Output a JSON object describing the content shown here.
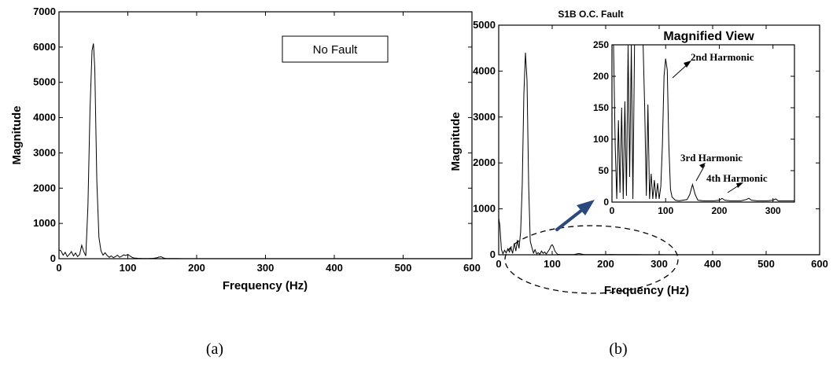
{
  "chart_data": [
    {
      "type": "line",
      "panel_caption": "(a)",
      "title": "",
      "legend_text": "No Fault",
      "xlabel": "Frequency (Hz)",
      "ylabel": "Magnitude",
      "xlim": [
        0,
        600
      ],
      "ylim": [
        0,
        7000
      ],
      "xticks": [
        0,
        100,
        200,
        300,
        400,
        500,
        600
      ],
      "yticks": [
        0,
        1000,
        2000,
        3000,
        4000,
        5000,
        6000,
        7000
      ],
      "x": [
        0,
        3,
        6,
        9,
        12,
        15,
        18,
        21,
        24,
        27,
        30,
        33,
        36,
        39,
        42,
        45,
        48,
        50,
        52,
        55,
        58,
        61,
        64,
        67,
        70,
        73,
        76,
        79,
        82,
        85,
        88,
        91,
        94,
        97,
        100,
        103,
        106,
        109,
        112,
        115,
        118,
        121,
        124,
        127,
        130,
        133,
        136,
        139,
        142,
        145,
        148,
        150,
        152,
        155,
        160,
        170,
        180,
        200,
        250,
        300,
        350,
        400,
        450,
        500,
        550,
        600
      ],
      "y": [
        250,
        220,
        100,
        180,
        60,
        120,
        200,
        80,
        160,
        60,
        120,
        380,
        200,
        80,
        1500,
        4200,
        5900,
        6100,
        5400,
        2200,
        600,
        220,
        100,
        170,
        90,
        40,
        80,
        30,
        60,
        100,
        40,
        70,
        110,
        90,
        120,
        80,
        40,
        20,
        15,
        10,
        8,
        6,
        5,
        5,
        6,
        8,
        10,
        15,
        25,
        45,
        55,
        40,
        20,
        8,
        5,
        4,
        3,
        3,
        3,
        3,
        2,
        2,
        2,
        2,
        2,
        2
      ]
    },
    {
      "type": "line",
      "panel_caption": "(b)",
      "title": "S1B O.C. Fault",
      "xlabel": "Frequency (Hz)",
      "ylabel": "Magnitude",
      "xlim": [
        0,
        600
      ],
      "ylim": [
        0,
        5000
      ],
      "xticks": [
        0,
        100,
        200,
        300,
        400,
        500,
        600
      ],
      "yticks": [
        0,
        1000,
        2000,
        3000,
        4000,
        5000
      ],
      "x": [
        0,
        2,
        5,
        8,
        11,
        14,
        17,
        20,
        23,
        26,
        29,
        32,
        35,
        38,
        41,
        44,
        47,
        50,
        53,
        56,
        59,
        62,
        65,
        68,
        71,
        74,
        77,
        80,
        83,
        86,
        89,
        92,
        95,
        98,
        100,
        102,
        105,
        110,
        115,
        120,
        130,
        140,
        145,
        150,
        155,
        160,
        170,
        180,
        190,
        200,
        210,
        220,
        230,
        240,
        250,
        260,
        270,
        280,
        290,
        300,
        310,
        330,
        400,
        500,
        600
      ],
      "y": [
        800,
        650,
        120,
        20,
        100,
        40,
        130,
        60,
        150,
        30,
        250,
        80,
        320,
        140,
        500,
        1500,
        3500,
        4400,
        3800,
        1500,
        300,
        155,
        40,
        110,
        20,
        45,
        10,
        80,
        30,
        60,
        15,
        70,
        120,
        200,
        220,
        180,
        80,
        10,
        5,
        4,
        3,
        4,
        15,
        28,
        15,
        5,
        3,
        3,
        3,
        3,
        6,
        3,
        3,
        3,
        5,
        3,
        2,
        2,
        2,
        3,
        2,
        2,
        2,
        2,
        2
      ],
      "inset": {
        "title": "Magnified View",
        "xlim": [
          0,
          340
        ],
        "ylim": [
          0,
          250
        ],
        "xticks": [
          0,
          100,
          200,
          300
        ],
        "yticks": [
          0,
          50,
          100,
          150,
          200,
          250
        ],
        "annotations": [
          {
            "text": "2nd Harmonic",
            "x": 100,
            "y": 228
          },
          {
            "text": "3rd Harmonic",
            "x": 150,
            "y": 30
          },
          {
            "text": "4th Harmonic",
            "x": 200,
            "y": 8
          }
        ],
        "x": [
          0,
          3,
          6,
          9,
          12,
          15,
          18,
          21,
          24,
          27,
          30,
          33,
          36,
          39,
          42,
          45,
          48,
          50,
          52,
          55,
          58,
          61,
          64,
          67,
          70,
          73,
          76,
          79,
          82,
          85,
          88,
          91,
          94,
          97,
          100,
          103,
          106,
          109,
          112,
          118,
          125,
          132,
          140,
          145,
          150,
          155,
          160,
          170,
          180,
          190,
          200,
          205,
          210,
          220,
          230,
          240,
          250,
          255,
          260,
          270,
          280,
          290,
          300,
          305,
          310,
          320,
          330,
          340
        ],
        "y": [
          300,
          250,
          90,
          5,
          130,
          15,
          150,
          5,
          160,
          10,
          255,
          40,
          255,
          5,
          255,
          255,
          255,
          255,
          255,
          255,
          255,
          150,
          10,
          155,
          5,
          45,
          5,
          35,
          5,
          30,
          5,
          25,
          90,
          200,
          228,
          210,
          90,
          20,
          8,
          3,
          2,
          3,
          4,
          12,
          28,
          12,
          3,
          2,
          2,
          2,
          3,
          6,
          3,
          2,
          2,
          2,
          4,
          6,
          3,
          2,
          2,
          2,
          3,
          5,
          2,
          2,
          2,
          2
        ]
      }
    }
  ]
}
